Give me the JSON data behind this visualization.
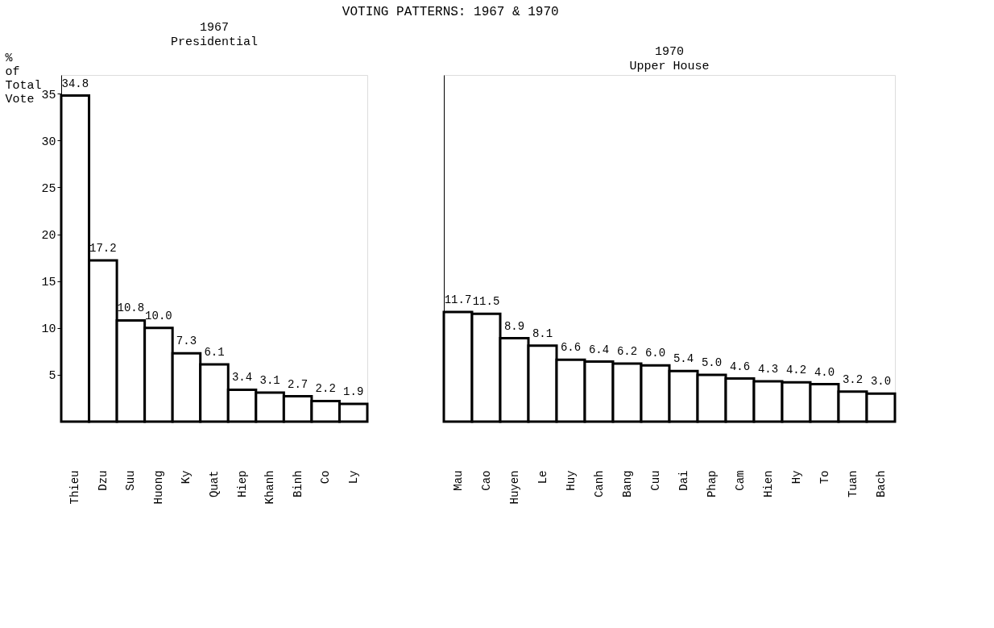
{
  "chart_data": [
    {
      "type": "bar",
      "annotations": [
        "VOTING PATTERNS: 1967 & 1970"
      ],
      "title": "1967",
      "subtitle": "Presidential",
      "ylabel": "% of Total Vote",
      "categories": [
        "Thieu",
        "Dzu",
        "Suu",
        "Huong",
        "Ky",
        "Quat",
        "Hiep",
        "Khanh",
        "Binh",
        "Co",
        "Ly"
      ],
      "series": [
        {
          "color": "#000000",
          "values": [
            34.8,
            17.2,
            10.8,
            10.0,
            7.3,
            6.1,
            3.4,
            3.1,
            2.7,
            2.2,
            1.9
          ],
          "value_labels": [
            "34.8",
            "17.2",
            "10.8",
            "10.0",
            "7.3",
            "6.1",
            "3.4",
            "3.1",
            "2.7",
            "2.2",
            "1.9"
          ]
        }
      ],
      "ylim": [
        0,
        37
      ],
      "yticks": [
        5,
        10,
        15,
        20,
        25,
        30,
        35
      ]
    },
    {
      "type": "bar",
      "title": "1970",
      "subtitle": "Upper House",
      "categories": [
        "Mau",
        "Cao",
        "Huyen",
        "Le",
        "Huy",
        "Canh",
        "Bang",
        "Cuu",
        "Dai",
        "Phap",
        "Cam",
        "Hien",
        "Hy",
        "To",
        "Tuan",
        "Bach"
      ],
      "series": [
        {
          "color": "#000000",
          "values": [
            11.7,
            11.5,
            8.9,
            8.1,
            6.6,
            6.4,
            6.2,
            6.0,
            5.4,
            5.0,
            4.6,
            4.3,
            4.2,
            4.0,
            3.2,
            3.0
          ],
          "value_labels": [
            "11.7",
            "11.5",
            "8.9",
            "8.1",
            "6.6",
            "6.4",
            "6.2",
            "6.0",
            "5.4",
            "5.0",
            "4.6",
            "4.3",
            "4.2",
            "4.0",
            "3.2",
            "3.0"
          ]
        }
      ],
      "ylim": [
        0,
        37
      ],
      "yticks": [
        5,
        10,
        15,
        20,
        25,
        30,
        35
      ],
      "tick_labels": "x"
    }
  ]
}
